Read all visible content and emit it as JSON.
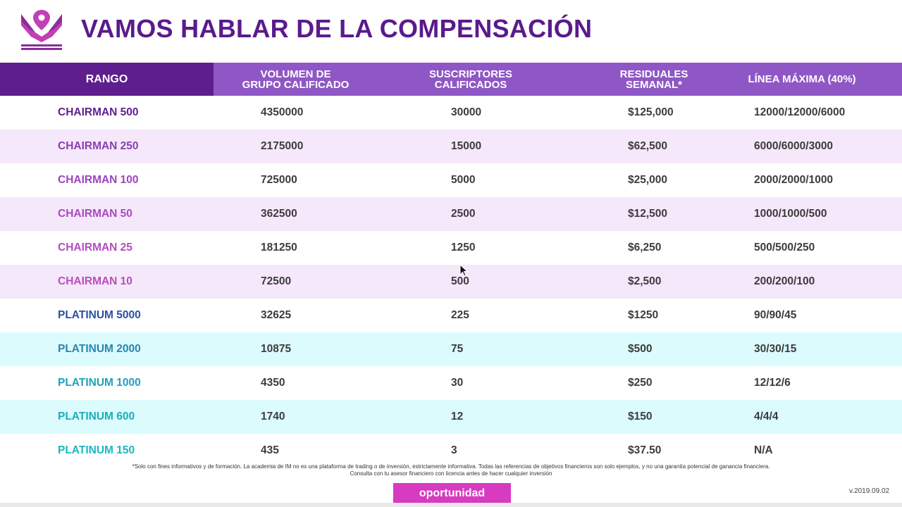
{
  "title": "VAMOS HABLAR DE LA COMPENSACIÓN",
  "logo_icon": "crown-pin-logo-icon",
  "colors": {
    "brand_purple": "#5f1e8e",
    "header_lilac": "#8f57c5",
    "row_lavender": "#f5e8fb",
    "row_cyan": "#dcfbfd",
    "button_magenta": "#d63bc0"
  },
  "table": {
    "headers": {
      "rango": "RANGO",
      "volumen_1": "VOLUMEN DE",
      "volumen_2": "GRUPO CALIFICADO",
      "suscriptores_1": "SUSCRIPTORES",
      "suscriptores_2": "CALIFICADOS",
      "residuales_1": "RESIDUALES",
      "residuales_2": "SEMANAL*",
      "linea": "LÍNEA MÁXIMA (40%)"
    },
    "rows": [
      {
        "rank": "CHAIRMAN 500",
        "color": "#5f1e8e",
        "volumen": "4350000",
        "suscriptores": "30000",
        "residuales": "$125,000",
        "linea": "12000/12000/6000"
      },
      {
        "rank": "CHAIRMAN 250",
        "color": "#8a3fb0",
        "volumen": "2175000",
        "suscriptores": "15000",
        "residuales": "$62,500",
        "linea": "6000/6000/3000"
      },
      {
        "rank": "CHAIRMAN 100",
        "color": "#9c46b8",
        "volumen": "725000",
        "suscriptores": "5000",
        "residuales": "$25,000",
        "linea": "2000/2000/1000"
      },
      {
        "rank": "CHAIRMAN 50",
        "color": "#a84bbd",
        "volumen": "362500",
        "suscriptores": "2500",
        "residuales": "$12,500",
        "linea": "1000/1000/500"
      },
      {
        "rank": "CHAIRMAN 25",
        "color": "#b24dbd",
        "volumen": "181250",
        "suscriptores": "1250",
        "residuales": "$6,250",
        "linea": "500/500/250"
      },
      {
        "rank": "CHAIRMAN 10",
        "color": "#b84ebb",
        "volumen": "72500",
        "suscriptores": "500",
        "residuales": "$2,500",
        "linea": "200/200/100"
      },
      {
        "rank": "PLATINUM 5000",
        "color": "#2b4fa3",
        "volumen": "32625",
        "suscriptores": "225",
        "residuales": "$1250",
        "linea": "90/90/45"
      },
      {
        "rank": "PLATINUM 2000",
        "color": "#2a86b0",
        "volumen": "10875",
        "suscriptores": "75",
        "residuales": "$500",
        "linea": "30/30/15"
      },
      {
        "rank": "PLATINUM 1000",
        "color": "#1fa1b8",
        "volumen": "4350",
        "suscriptores": "30",
        "residuales": "$250",
        "linea": "12/12/6"
      },
      {
        "rank": "PLATINUM 600",
        "color": "#1aaebc",
        "volumen": "1740",
        "suscriptores": "12",
        "residuales": "$150",
        "linea": "4/4/4"
      },
      {
        "rank": "PLATINUM 150",
        "color": "#1ab7c2",
        "volumen": "435",
        "suscriptores": "3",
        "residuales": "$37.50",
        "linea": "N/A"
      }
    ]
  },
  "disclaimer_line1": "*Solo con fines informativos y de formación.  La academia de IM no es una plataforma de trading o de inversión, estrictamente informativa. Todas las referencias de objetivos financieros son solo ejemplos, y no una garantía potencial de ganancia financiera.",
  "disclaimer_line2": "Consulta con tu asesor financiero con licencia antes de hacer cualquier inversión",
  "button_label": "oportunidad",
  "version": "v.2019.09.02"
}
